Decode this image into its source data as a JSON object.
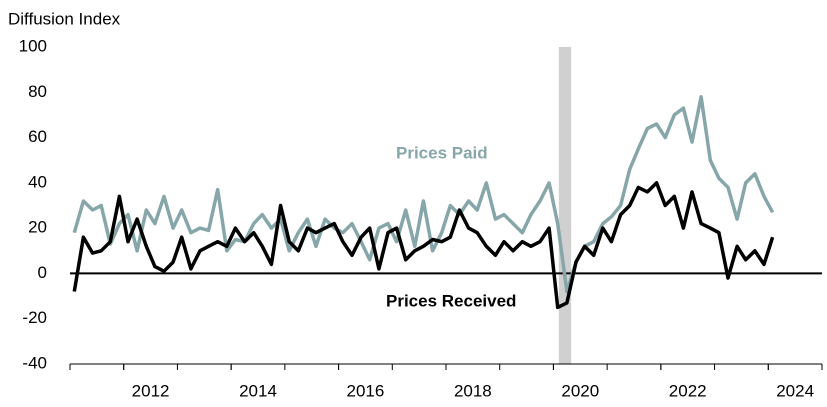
{
  "chart_data": {
    "type": "line",
    "y_label": "Diffusion Index",
    "x": [
      2011.08,
      2011.25,
      2011.42,
      2011.58,
      2011.75,
      2011.92,
      2012.08,
      2012.25,
      2012.42,
      2012.58,
      2012.75,
      2012.92,
      2013.08,
      2013.25,
      2013.42,
      2013.58,
      2013.75,
      2013.92,
      2014.08,
      2014.25,
      2014.42,
      2014.58,
      2014.75,
      2014.92,
      2015.08,
      2015.25,
      2015.42,
      2015.58,
      2015.75,
      2015.92,
      2016.08,
      2016.25,
      2016.42,
      2016.58,
      2016.75,
      2016.92,
      2017.08,
      2017.25,
      2017.42,
      2017.58,
      2017.75,
      2017.92,
      2018.08,
      2018.25,
      2018.42,
      2018.58,
      2018.75,
      2018.92,
      2019.08,
      2019.25,
      2019.42,
      2019.58,
      2019.75,
      2019.92,
      2020.08,
      2020.25,
      2020.42,
      2020.58,
      2020.75,
      2020.92,
      2021.08,
      2021.25,
      2021.42,
      2021.58,
      2021.75,
      2021.92,
      2022.08,
      2022.25,
      2022.42,
      2022.58,
      2022.75,
      2022.92,
      2023.08,
      2023.25,
      2023.42,
      2023.58,
      2023.75,
      2023.92,
      2024.08
    ],
    "series": [
      {
        "name": "Prices Paid",
        "color": "#86a6aa",
        "values": [
          18,
          32,
          28,
          30,
          13,
          22,
          26,
          10,
          28,
          22,
          34,
          20,
          28,
          18,
          20,
          19,
          37,
          10,
          15,
          14,
          22,
          26,
          20,
          24,
          10,
          18,
          24,
          12,
          24,
          20,
          18,
          22,
          14,
          6,
          20,
          22,
          14,
          28,
          12,
          32,
          10,
          18,
          30,
          26,
          32,
          28,
          40,
          24,
          26,
          22,
          18,
          26,
          32,
          40,
          22,
          -8,
          5,
          12,
          14,
          22,
          25,
          30,
          46,
          55,
          64,
          66,
          60,
          70,
          73,
          58,
          78,
          50,
          42,
          38,
          24,
          40,
          44,
          34,
          27
        ]
      },
      {
        "name": "Prices Received",
        "color": "#000000",
        "values": [
          -8,
          16,
          9,
          10,
          14,
          34,
          14,
          24,
          12,
          3,
          1,
          5,
          16,
          2,
          10,
          12,
          14,
          12,
          20,
          14,
          18,
          12,
          4,
          30,
          14,
          10,
          20,
          18,
          20,
          22,
          14,
          8,
          16,
          20,
          2,
          18,
          20,
          6,
          10,
          12,
          15,
          14,
          16,
          28,
          20,
          18,
          12,
          8,
          14,
          10,
          14,
          12,
          14,
          20,
          -15,
          -13,
          5,
          12,
          8,
          20,
          14,
          26,
          30,
          38,
          36,
          40,
          30,
          34,
          20,
          36,
          22,
          20,
          18,
          -2,
          12,
          6,
          10,
          4,
          16
        ]
      }
    ],
    "recession": [
      2020.1,
      2020.33
    ],
    "xlim": [
      2011,
      2025
    ],
    "xticks": [
      {
        "value": 2012,
        "label": "2012"
      },
      {
        "value": 2014,
        "label": "2014"
      },
      {
        "value": 2016,
        "label": "2016"
      },
      {
        "value": 2018,
        "label": "2018"
      },
      {
        "value": 2020,
        "label": "2020"
      },
      {
        "value": 2022,
        "label": "2022"
      },
      {
        "value": 2024,
        "label": "2024"
      }
    ],
    "ylim": [
      -40,
      100
    ],
    "yticks": [
      -40,
      -20,
      0,
      20,
      40,
      60,
      80,
      100
    ],
    "grid": false
  }
}
